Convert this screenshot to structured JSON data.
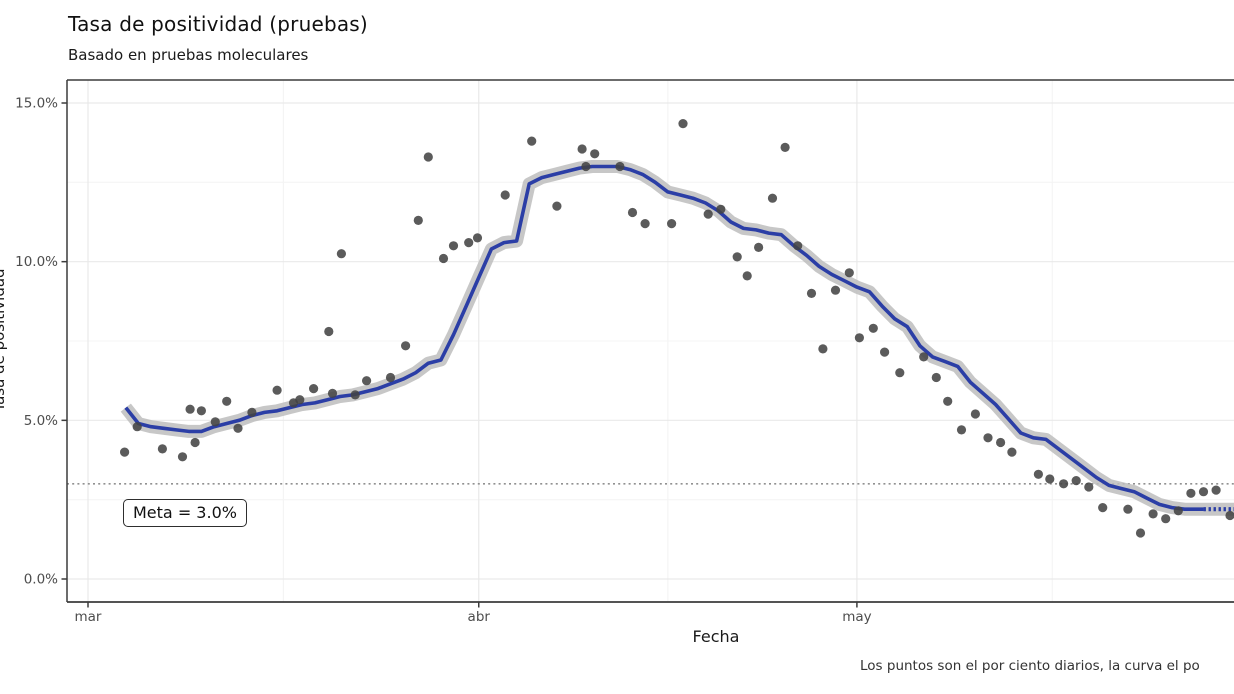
{
  "title": "Tasa de positividad (pruebas)",
  "subtitle": "Basado en pruebas moleculares",
  "x_axis_label": "Fecha",
  "y_axis_label": "Tasa de positividad",
  "caption": "Los puntos son el por ciento diarios, la curva el po",
  "annotation": {
    "meta_label": "Meta = 3.0%",
    "meta_value_pct": 3.0
  },
  "colors": {
    "trend": "#2b3ea6",
    "band": "#bdbdbd",
    "points": "#434343",
    "target": "#919191",
    "grid_major": "#e9e9e9",
    "grid_minor": "#f4f4f4",
    "axis": "#3c3c3c",
    "tick_text": "#4d4d4d"
  },
  "chart_data": {
    "type": "scatter",
    "title": "Tasa de positividad (pruebas)",
    "subtitle": "Basado en pruebas moleculares",
    "xlabel": "Fecha",
    "ylabel": "Tasa de positividad",
    "x_unit": "days since Mar 1",
    "ylim": [
      -0.85,
      15.75
    ],
    "xlim_days": [
      -1.7,
      91
    ],
    "grid": true,
    "y_ticks": [
      {
        "label": "0.0%",
        "value": 0
      },
      {
        "label": "5.0%",
        "value": 5
      },
      {
        "label": "10.0%",
        "value": 10
      },
      {
        "label": "15.0%",
        "value": 15
      }
    ],
    "y_minor": [
      2.5,
      7.5,
      12.5
    ],
    "x_ticks": [
      {
        "label": "mar",
        "day": 0
      },
      {
        "label": "abr",
        "day": 31
      },
      {
        "label": "may",
        "day": 61
      }
    ],
    "x_minor_days": [
      15.5,
      46,
      76.5
    ],
    "target_line": {
      "value": 3.0,
      "style": "dotted",
      "label": "Meta = 3.0%"
    },
    "series": [
      {
        "name": "por-ciento-diario",
        "type": "scatter",
        "points": [
          [
            2.9,
            4.0
          ],
          [
            3.9,
            4.8
          ],
          [
            5.9,
            4.1
          ],
          [
            7.5,
            3.85
          ],
          [
            8.1,
            5.35
          ],
          [
            8.5,
            4.3
          ],
          [
            9.0,
            5.3
          ],
          [
            10.1,
            4.95
          ],
          [
            11.0,
            5.6
          ],
          [
            11.9,
            4.75
          ],
          [
            13.0,
            5.25
          ],
          [
            15.0,
            5.95
          ],
          [
            16.3,
            5.55
          ],
          [
            16.8,
            5.65
          ],
          [
            17.9,
            6.0
          ],
          [
            19.1,
            7.8
          ],
          [
            19.4,
            5.85
          ],
          [
            20.1,
            10.25
          ],
          [
            21.2,
            5.8
          ],
          [
            22.1,
            6.25
          ],
          [
            24.0,
            6.35
          ],
          [
            25.2,
            7.35
          ],
          [
            26.2,
            11.3
          ],
          [
            27.0,
            13.3
          ],
          [
            28.2,
            10.1
          ],
          [
            29.0,
            10.5
          ],
          [
            30.2,
            10.6
          ],
          [
            30.9,
            10.75
          ],
          [
            33.1,
            12.1
          ],
          [
            35.2,
            13.8
          ],
          [
            37.2,
            11.75
          ],
          [
            39.2,
            13.55
          ],
          [
            39.5,
            13.0
          ],
          [
            40.2,
            13.4
          ],
          [
            42.2,
            13.0
          ],
          [
            43.2,
            11.55
          ],
          [
            44.2,
            11.2
          ],
          [
            46.3,
            11.2
          ],
          [
            47.2,
            14.35
          ],
          [
            49.2,
            11.5
          ],
          [
            50.2,
            11.65
          ],
          [
            51.5,
            10.15
          ],
          [
            52.3,
            9.55
          ],
          [
            53.2,
            10.45
          ],
          [
            54.3,
            12.0
          ],
          [
            55.3,
            13.6
          ],
          [
            56.3,
            10.5
          ],
          [
            57.4,
            9.0
          ],
          [
            58.3,
            7.25
          ],
          [
            59.3,
            9.1
          ],
          [
            60.4,
            9.65
          ],
          [
            61.2,
            7.6
          ],
          [
            62.3,
            7.9
          ],
          [
            63.2,
            7.15
          ],
          [
            64.4,
            6.5
          ],
          [
            66.3,
            7.0
          ],
          [
            67.3,
            6.35
          ],
          [
            68.2,
            5.6
          ],
          [
            69.3,
            4.7
          ],
          [
            70.4,
            5.2
          ],
          [
            71.4,
            4.45
          ],
          [
            72.4,
            4.3
          ],
          [
            73.3,
            4.0
          ],
          [
            75.4,
            3.3
          ],
          [
            76.3,
            3.15
          ],
          [
            77.4,
            3.0
          ],
          [
            78.4,
            3.1
          ],
          [
            79.4,
            2.9
          ],
          [
            80.5,
            2.25
          ],
          [
            82.5,
            2.2
          ],
          [
            83.5,
            1.45
          ],
          [
            84.5,
            2.05
          ],
          [
            85.5,
            1.9
          ],
          [
            86.5,
            2.15
          ],
          [
            87.5,
            2.7
          ],
          [
            88.5,
            2.75
          ],
          [
            89.5,
            2.8
          ],
          [
            90.6,
            2.0
          ]
        ]
      },
      {
        "name": "curva-promedio-movil",
        "type": "line+band",
        "dash_tail_from": 88.5,
        "points": [
          [
            3,
            5.4
          ],
          [
            4,
            4.9
          ],
          [
            5,
            4.8
          ],
          [
            6,
            4.75
          ],
          [
            7,
            4.7
          ],
          [
            8,
            4.65
          ],
          [
            9,
            4.65
          ],
          [
            10,
            4.8
          ],
          [
            11,
            4.9
          ],
          [
            12,
            5.0
          ],
          [
            13,
            5.15
          ],
          [
            14,
            5.25
          ],
          [
            15,
            5.3
          ],
          [
            16,
            5.4
          ],
          [
            17,
            5.5
          ],
          [
            18,
            5.55
          ],
          [
            19,
            5.65
          ],
          [
            20,
            5.75
          ],
          [
            21,
            5.8
          ],
          [
            22,
            5.9
          ],
          [
            23,
            6.0
          ],
          [
            24,
            6.15
          ],
          [
            25,
            6.3
          ],
          [
            26,
            6.5
          ],
          [
            27,
            6.8
          ],
          [
            28,
            6.9
          ],
          [
            29,
            7.7
          ],
          [
            30,
            8.6
          ],
          [
            31,
            9.5
          ],
          [
            32,
            10.4
          ],
          [
            33,
            10.6
          ],
          [
            34,
            10.65
          ],
          [
            35,
            12.45
          ],
          [
            36,
            12.65
          ],
          [
            37,
            12.75
          ],
          [
            38,
            12.85
          ],
          [
            39,
            12.95
          ],
          [
            40,
            13.0
          ],
          [
            41,
            13.0
          ],
          [
            42,
            13.0
          ],
          [
            43,
            12.9
          ],
          [
            44,
            12.75
          ],
          [
            45,
            12.5
          ],
          [
            46,
            12.2
          ],
          [
            47,
            12.1
          ],
          [
            48,
            12.0
          ],
          [
            49,
            11.85
          ],
          [
            50,
            11.6
          ],
          [
            51,
            11.25
          ],
          [
            52,
            11.05
          ],
          [
            53,
            11.0
          ],
          [
            54,
            10.9
          ],
          [
            55,
            10.85
          ],
          [
            56,
            10.5
          ],
          [
            57,
            10.2
          ],
          [
            58,
            9.85
          ],
          [
            59,
            9.6
          ],
          [
            60,
            9.4
          ],
          [
            61,
            9.2
          ],
          [
            62,
            9.05
          ],
          [
            63,
            8.6
          ],
          [
            64,
            8.2
          ],
          [
            65,
            7.95
          ],
          [
            66,
            7.35
          ],
          [
            67,
            7.0
          ],
          [
            68,
            6.85
          ],
          [
            69,
            6.7
          ],
          [
            70,
            6.2
          ],
          [
            71,
            5.85
          ],
          [
            72,
            5.5
          ],
          [
            73,
            5.05
          ],
          [
            74,
            4.6
          ],
          [
            75,
            4.45
          ],
          [
            76,
            4.4
          ],
          [
            77,
            4.1
          ],
          [
            78,
            3.8
          ],
          [
            79,
            3.5
          ],
          [
            80,
            3.2
          ],
          [
            81,
            2.95
          ],
          [
            82,
            2.85
          ],
          [
            83,
            2.75
          ],
          [
            84,
            2.55
          ],
          [
            85,
            2.35
          ],
          [
            86,
            2.25
          ],
          [
            87,
            2.2
          ],
          [
            88,
            2.2
          ],
          [
            89,
            2.2
          ],
          [
            90,
            2.2
          ],
          [
            91,
            2.2
          ]
        ]
      }
    ]
  }
}
